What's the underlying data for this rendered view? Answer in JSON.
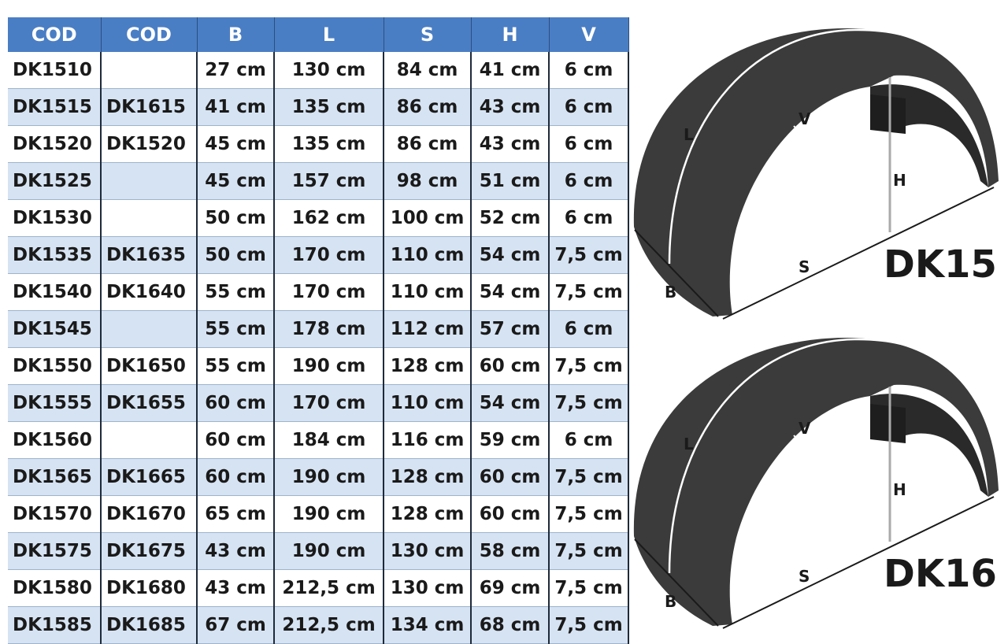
{
  "table": {
    "header": [
      "COD",
      "COD",
      "B",
      "L",
      "S",
      "H",
      "V"
    ],
    "rows": [
      [
        "DK1510",
        null,
        "27 cm",
        "130 cm",
        "84 cm",
        "41 cm",
        "6 cm"
      ],
      [
        "DK1515",
        "DK1615",
        "41 cm",
        "135 cm",
        "86 cm",
        "43 cm",
        "6 cm"
      ],
      [
        "DK1520",
        "DK1520",
        "45 cm",
        "135 cm",
        "86 cm",
        "43 cm",
        "6 cm"
      ],
      [
        "DK1525",
        null,
        "45 cm",
        "157 cm",
        "98 cm",
        "51 cm",
        "6 cm"
      ],
      [
        "DK1530",
        null,
        "50 cm",
        "162 cm",
        "100 cm",
        "52 cm",
        "6 cm"
      ],
      [
        "DK1535",
        "DK1635",
        "50 cm",
        "170 cm",
        "110 cm",
        "54 cm",
        "7,5 cm"
      ],
      [
        "DK1540",
        "DK1640",
        "55 cm",
        "170 cm",
        "110 cm",
        "54 cm",
        "7,5 cm"
      ],
      [
        "DK1545",
        null,
        "55 cm",
        "178 cm",
        "112 cm",
        "57 cm",
        "6 cm"
      ],
      [
        "DK1550",
        "DK1650",
        "55 cm",
        "190 cm",
        "128 cm",
        "60 cm",
        "7,5 cm"
      ],
      [
        "DK1555",
        "DK1655",
        "60 cm",
        "170 cm",
        "110 cm",
        "54 cm",
        "7,5 cm"
      ],
      [
        "DK1560",
        null,
        "60 cm",
        "184 cm",
        "116 cm",
        "59 cm",
        "6 cm"
      ],
      [
        "DK1565",
        "DK1665",
        "60 cm",
        "190 cm",
        "128 cm",
        "60 cm",
        "7,5 cm"
      ],
      [
        "DK1570",
        "DK1670",
        "65 cm",
        "190 cm",
        "128 cm",
        "60 cm",
        "7,5 cm"
      ],
      [
        "DK1575",
        "DK1675",
        "43 cm",
        "190 cm",
        "130 cm",
        "58 cm",
        "7,5 cm"
      ],
      [
        "DK1580",
        "DK1680",
        "43 cm",
        "212,5 cm",
        "130 cm",
        "69 cm",
        "7,5 cm"
      ],
      [
        "DK1585",
        "DK1685",
        "67 cm",
        "212,5 cm",
        "134 cm",
        "68 cm",
        "7,5 cm"
      ]
    ]
  },
  "diagrams": [
    {
      "title": "DK15",
      "labels": {
        "L": "L",
        "V": "V",
        "H": "H",
        "S": "S",
        "B": "B"
      }
    },
    {
      "title": "DK16",
      "labels": {
        "L": "L",
        "V": "V",
        "H": "H",
        "S": "S",
        "B": "B"
      }
    }
  ]
}
